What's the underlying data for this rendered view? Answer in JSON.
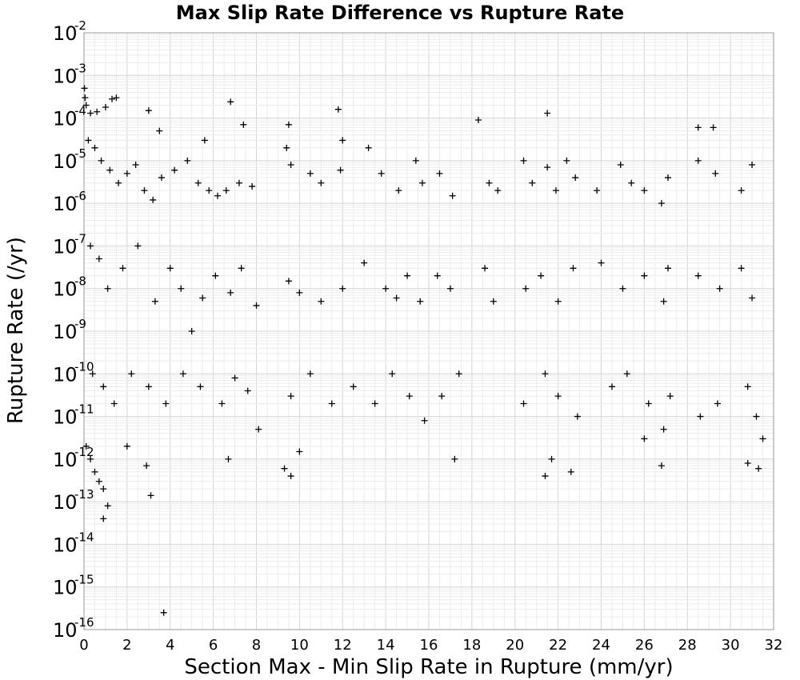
{
  "chart_data": {
    "type": "scatter",
    "title": "Max Slip Rate Difference vs Rupture Rate",
    "xlabel": "Section Max - Min Slip Rate in Rupture (mm/yr)",
    "ylabel": "Rupture Rate (/yr)",
    "xlim": [
      0,
      32
    ],
    "ylim": [
      1e-16,
      0.01
    ],
    "yscale": "log",
    "grid": true,
    "legend": "none",
    "marker": "plus",
    "marker_color": "#000000",
    "x_ticks": [
      "0",
      "2",
      "4",
      "6",
      "8",
      "10",
      "12",
      "14",
      "16",
      "18",
      "20",
      "22",
      "24",
      "26",
      "28",
      "30",
      "32"
    ],
    "y_ticks": [
      {
        "base": "10",
        "exp": "-2"
      },
      {
        "base": "10",
        "exp": "-3"
      },
      {
        "base": "10",
        "exp": "-4"
      },
      {
        "base": "10",
        "exp": "-5"
      },
      {
        "base": "10",
        "exp": "-6"
      },
      {
        "base": "10",
        "exp": "-7"
      },
      {
        "base": "10",
        "exp": "-8"
      },
      {
        "base": "10",
        "exp": "-9"
      },
      {
        "base": "10",
        "exp": "-10"
      },
      {
        "base": "10",
        "exp": "-11"
      },
      {
        "base": "10",
        "exp": "-12"
      },
      {
        "base": "10",
        "exp": "-13"
      },
      {
        "base": "10",
        "exp": "-14"
      },
      {
        "base": "10",
        "exp": "-15"
      },
      {
        "base": "10",
        "exp": "-16"
      }
    ],
    "series": [
      {
        "points": [
          [
            0.02,
            0.0005
          ],
          [
            0.05,
            0.0003
          ],
          [
            0.1,
            0.0002
          ],
          [
            0.3,
            0.00013
          ],
          [
            0.6,
            0.00014
          ],
          [
            1.0,
            0.00018
          ],
          [
            1.3,
            0.00028
          ],
          [
            1.5,
            0.0003
          ],
          [
            3.0,
            0.00015
          ],
          [
            6.8,
            0.00024
          ],
          [
            11.8,
            0.00016
          ],
          [
            21.5,
            0.00013
          ],
          [
            18.3,
            9e-05
          ],
          [
            28.5,
            6e-05
          ],
          [
            29.2,
            6e-05
          ],
          [
            7.4,
            7e-05
          ],
          [
            9.5,
            7e-05
          ],
          [
            5.6,
            3e-05
          ],
          [
            3.5,
            5e-05
          ],
          [
            0.2,
            3e-05
          ],
          [
            0.5,
            2e-05
          ],
          [
            0.8,
            1e-05
          ],
          [
            1.2,
            6e-06
          ],
          [
            1.6,
            3e-06
          ],
          [
            2.0,
            5e-06
          ],
          [
            2.4,
            8e-06
          ],
          [
            2.8,
            2e-06
          ],
          [
            3.2,
            1.2e-06
          ],
          [
            3.6,
            4e-06
          ],
          [
            4.2,
            6e-06
          ],
          [
            4.8,
            1e-05
          ],
          [
            5.3,
            3e-06
          ],
          [
            5.8,
            2e-06
          ],
          [
            6.2,
            1.5e-06
          ],
          [
            6.6,
            2e-06
          ],
          [
            7.2,
            3e-06
          ],
          [
            7.8,
            2.5e-06
          ],
          [
            9.4,
            2e-05
          ],
          [
            9.6,
            8e-06
          ],
          [
            10.5,
            5e-06
          ],
          [
            11.0,
            3e-06
          ],
          [
            11.9,
            6e-06
          ],
          [
            12.0,
            3e-05
          ],
          [
            13.2,
            2e-05
          ],
          [
            13.8,
            5e-06
          ],
          [
            14.6,
            2e-06
          ],
          [
            15.4,
            1e-05
          ],
          [
            15.7,
            3e-06
          ],
          [
            16.5,
            5e-06
          ],
          [
            17.1,
            1.5e-06
          ],
          [
            18.8,
            3e-06
          ],
          [
            19.2,
            2e-06
          ],
          [
            20.4,
            1e-05
          ],
          [
            20.8,
            3e-06
          ],
          [
            21.5,
            7e-06
          ],
          [
            21.9,
            2e-06
          ],
          [
            22.4,
            1e-05
          ],
          [
            22.8,
            4e-06
          ],
          [
            23.8,
            2e-06
          ],
          [
            24.9,
            8e-06
          ],
          [
            25.4,
            3e-06
          ],
          [
            26.0,
            2e-06
          ],
          [
            26.8,
            1e-06
          ],
          [
            27.1,
            4e-06
          ],
          [
            28.5,
            1e-05
          ],
          [
            29.3,
            5e-06
          ],
          [
            30.5,
            2e-06
          ],
          [
            31.0,
            8e-06
          ],
          [
            0.3,
            1e-07
          ],
          [
            0.7,
            5e-08
          ],
          [
            1.1,
            1e-08
          ],
          [
            1.8,
            3e-08
          ],
          [
            2.5,
            1e-07
          ],
          [
            3.3,
            5e-09
          ],
          [
            4.0,
            3e-08
          ],
          [
            4.5,
            1e-08
          ],
          [
            5.0,
            1e-09
          ],
          [
            5.5,
            6e-09
          ],
          [
            6.1,
            2e-08
          ],
          [
            6.8,
            8e-09
          ],
          [
            7.3,
            3e-08
          ],
          [
            8.0,
            4e-09
          ],
          [
            9.5,
            1.5e-08
          ],
          [
            10.0,
            8e-09
          ],
          [
            11.0,
            5e-09
          ],
          [
            12.0,
            1e-08
          ],
          [
            13.0,
            4e-08
          ],
          [
            14.0,
            1e-08
          ],
          [
            14.5,
            6e-09
          ],
          [
            15.0,
            2e-08
          ],
          [
            15.6,
            5e-09
          ],
          [
            16.4,
            2e-08
          ],
          [
            17.0,
            1e-08
          ],
          [
            18.6,
            3e-08
          ],
          [
            19.0,
            5e-09
          ],
          [
            20.5,
            1e-08
          ],
          [
            21.2,
            2e-08
          ],
          [
            22.0,
            5e-09
          ],
          [
            22.7,
            3e-08
          ],
          [
            24.0,
            4e-08
          ],
          [
            25.0,
            1e-08
          ],
          [
            26.0,
            2e-08
          ],
          [
            26.9,
            5e-09
          ],
          [
            27.1,
            3e-08
          ],
          [
            28.5,
            2e-08
          ],
          [
            29.5,
            1e-08
          ],
          [
            30.5,
            3e-08
          ],
          [
            31.0,
            6e-09
          ],
          [
            0.4,
            1e-10
          ],
          [
            0.9,
            5e-11
          ],
          [
            1.4,
            2e-11
          ],
          [
            2.2,
            1e-10
          ],
          [
            3.0,
            5e-11
          ],
          [
            3.8,
            2e-11
          ],
          [
            4.6,
            1e-10
          ],
          [
            5.4,
            5e-11
          ],
          [
            6.4,
            2e-11
          ],
          [
            7.0,
            8e-11
          ],
          [
            7.6,
            4e-11
          ],
          [
            8.1,
            5e-12
          ],
          [
            9.6,
            3e-11
          ],
          [
            10.5,
            1e-10
          ],
          [
            11.5,
            2e-11
          ],
          [
            12.5,
            5e-11
          ],
          [
            13.5,
            2e-11
          ],
          [
            14.3,
            1e-10
          ],
          [
            15.1,
            3e-11
          ],
          [
            15.8,
            8e-12
          ],
          [
            16.6,
            3e-11
          ],
          [
            17.4,
            1e-10
          ],
          [
            20.4,
            2e-11
          ],
          [
            21.4,
            1e-10
          ],
          [
            22.0,
            3e-11
          ],
          [
            22.9,
            1e-11
          ],
          [
            24.5,
            5e-11
          ],
          [
            25.2,
            1e-10
          ],
          [
            26.2,
            2e-11
          ],
          [
            26.9,
            5e-12
          ],
          [
            27.2,
            3e-11
          ],
          [
            28.6,
            1e-11
          ],
          [
            29.4,
            2e-11
          ],
          [
            30.8,
            5e-11
          ],
          [
            31.2,
            1e-11
          ],
          [
            0.1,
            2e-12
          ],
          [
            0.3,
            1e-12
          ],
          [
            0.5,
            5e-13
          ],
          [
            0.9,
            2e-13
          ],
          [
            0.7,
            3e-13
          ],
          [
            1.1,
            8e-14
          ],
          [
            0.9,
            4e-14
          ],
          [
            2.0,
            2e-12
          ],
          [
            2.9,
            7e-13
          ],
          [
            3.1,
            1.4e-13
          ],
          [
            3.7,
            2.5e-16
          ],
          [
            6.7,
            1e-12
          ],
          [
            9.3,
            6e-13
          ],
          [
            9.6,
            4e-13
          ],
          [
            10.0,
            1.5e-12
          ],
          [
            17.2,
            1e-12
          ],
          [
            21.4,
            4e-13
          ],
          [
            21.7,
            1e-12
          ],
          [
            22.6,
            5e-13
          ],
          [
            26.8,
            7e-13
          ],
          [
            30.8,
            8e-13
          ],
          [
            31.3,
            6e-13
          ],
          [
            31.5,
            3e-12
          ],
          [
            26.0,
            3e-12
          ]
        ]
      }
    ]
  }
}
